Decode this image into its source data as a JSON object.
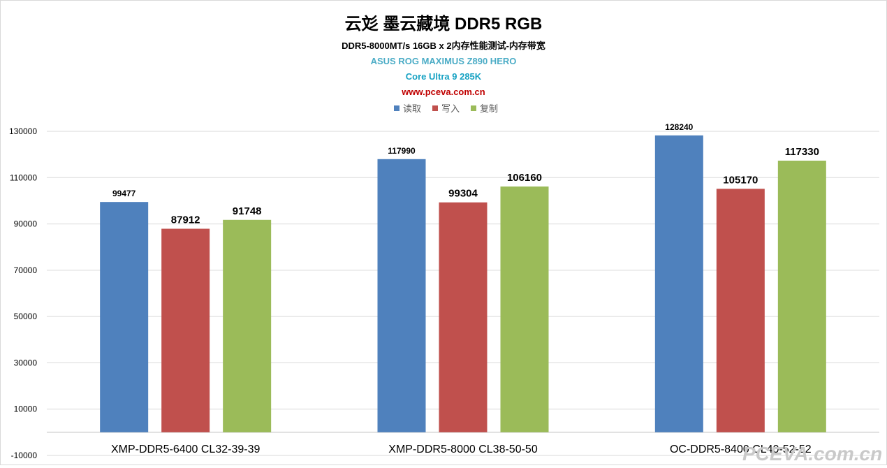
{
  "chart_data": {
    "type": "bar",
    "title": "云彣 墨云藏境 DDR5 RGB",
    "subtitles": [
      "DDR5-8000MT/s 16GB x 2内存性能测试-内存带宽",
      "ASUS ROG MAXIMUS Z890 HERO",
      "Core Ultra 9 285K",
      "www.pceva.com.cn"
    ],
    "subtitle_colors": [
      "#000000",
      "#4bacc6",
      "#17a2c3",
      "#c00000"
    ],
    "categories": [
      "XMP-DDR5-6400 CL32-39-39",
      "XMP-DDR5-8000 CL38-50-50",
      "OC-DDR5-8400 CL40-52-52"
    ],
    "series": [
      {
        "name": "读取",
        "color": "#4f81bd",
        "values": [
          99477,
          117990,
          128240
        ],
        "labels": [
          "99477",
          "117990",
          "128240"
        ]
      },
      {
        "name": "写入",
        "color": "#c0504d",
        "values": [
          87912,
          99304,
          105170
        ],
        "labels": [
          "87912",
          "99304",
          "105170"
        ]
      },
      {
        "name": "复制",
        "color": "#9bbb59",
        "values": [
          91748,
          106160,
          117330
        ],
        "labels": [
          "91748",
          "106160",
          "117330"
        ]
      }
    ],
    "ylim": [
      -10000,
      130000
    ],
    "yticks": [
      -10000,
      10000,
      30000,
      50000,
      70000,
      90000,
      110000,
      130000
    ],
    "ytick_labels": [
      "-10000",
      "10000",
      "30000",
      "50000",
      "70000",
      "90000",
      "110000",
      "130000"
    ],
    "grid": true,
    "legend_position": "top",
    "watermark": "PCEVA.com.cn"
  }
}
